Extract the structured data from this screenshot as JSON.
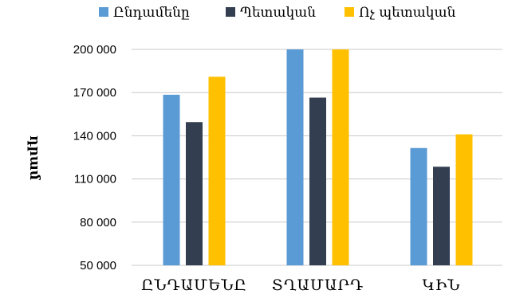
{
  "chart_data": {
    "type": "bar",
    "ylabel": "դրամ",
    "categories": [
      "ԸՆԴԱՄԵՆԸ",
      "ՏՂԱՄԱՐԴ",
      "ԿԻՆ"
    ],
    "series": [
      {
        "name": "Ընդամենը",
        "color": "#5B9BD5",
        "values": [
          168500,
          200000,
          131500
        ]
      },
      {
        "name": "Պետական",
        "color": "#333F50",
        "values": [
          149500,
          166500,
          118500
        ]
      },
      {
        "name": "Ոչ պետական",
        "color": "#FFC000",
        "values": [
          181000,
          200000,
          141000
        ]
      }
    ],
    "yticks": [
      {
        "value": 50000,
        "label": "50 000"
      },
      {
        "value": 80000,
        "label": "80 000"
      },
      {
        "value": 110000,
        "label": "110 000"
      },
      {
        "value": 140000,
        "label": "140 000"
      },
      {
        "value": 170000,
        "label": "170 000"
      },
      {
        "value": 200000,
        "label": "200 000"
      }
    ],
    "ylim": [
      50000,
      200000
    ],
    "grid": true,
    "legend_position": "top"
  }
}
